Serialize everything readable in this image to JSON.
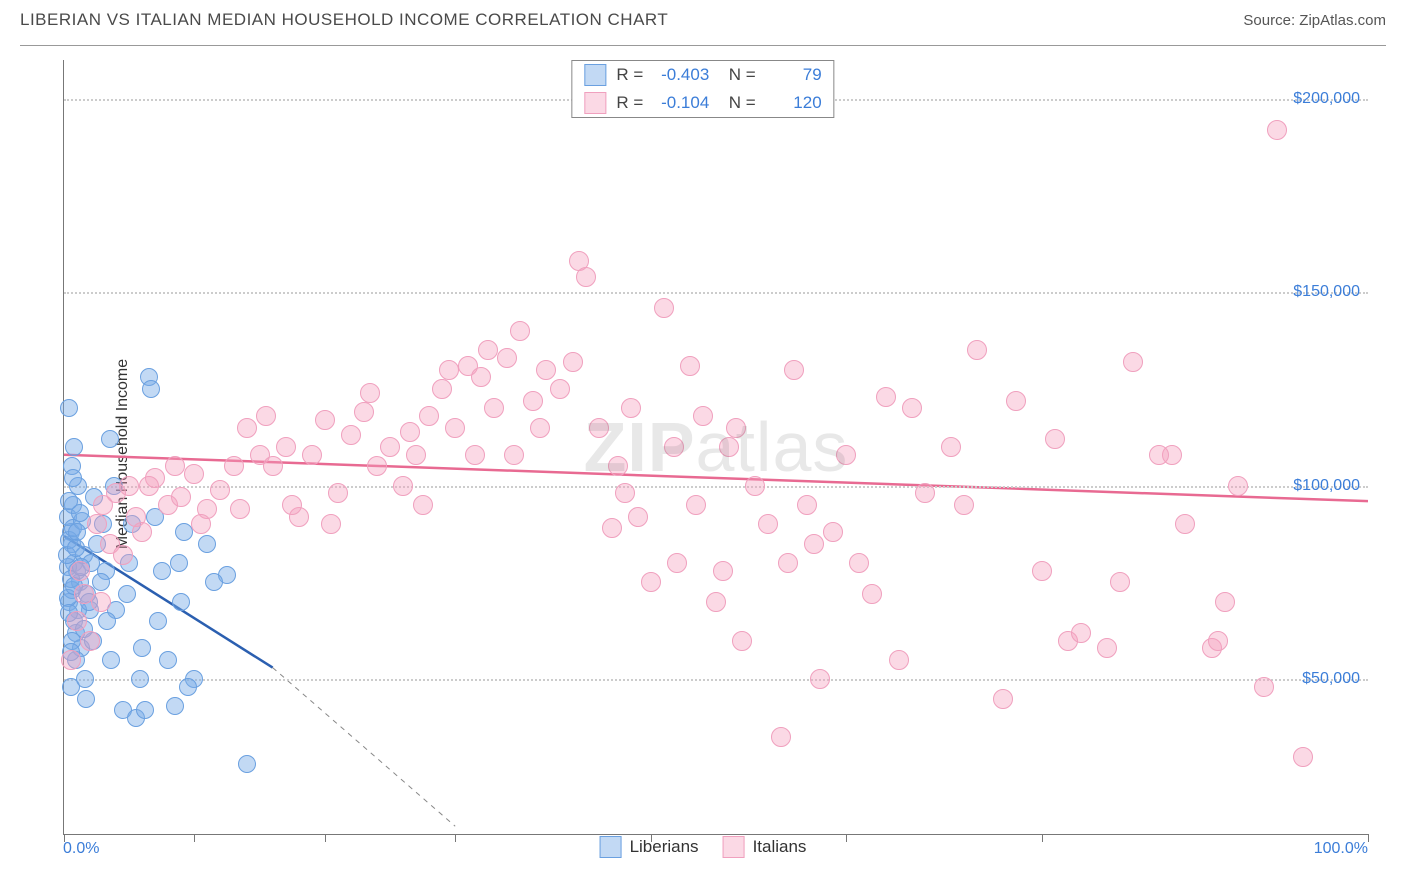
{
  "title": "LIBERIAN VS ITALIAN MEDIAN HOUSEHOLD INCOME CORRELATION CHART",
  "source_label": "Source: ",
  "source_name": "ZipAtlas.com",
  "watermark_prefix": "ZIP",
  "watermark_suffix": "atlas",
  "y_axis_label": "Median Household Income",
  "chart": {
    "type": "scatter",
    "xlim": [
      0,
      100
    ],
    "ylim": [
      10000,
      210000
    ],
    "x_ticks": [
      0,
      10,
      20,
      30,
      45,
      60,
      75,
      100
    ],
    "x_tick_labels_shown": {
      "0": "0.0%",
      "100": "100.0%"
    },
    "y_gridlines": [
      50000,
      100000,
      150000,
      200000
    ],
    "y_tick_labels": {
      "50000": "$50,000",
      "100000": "$100,000",
      "150000": "$150,000",
      "200000": "$200,000"
    },
    "grid_color": "#cccccc",
    "background_color": "#ffffff",
    "axis_color": "#777777",
    "tick_label_color": "#3b7dd8",
    "series": [
      {
        "name": "Liberians",
        "color_fill": "rgba(120,170,230,0.45)",
        "color_stroke": "#6aa0e0",
        "trend_color": "#2b5fb0",
        "marker_radius": 9,
        "R": "-0.403",
        "N": "79",
        "trend": {
          "x1": 0,
          "y1": 87000,
          "x2": 16,
          "y2": 53000,
          "dash_to_x": 30,
          "dash_to_y": 12000
        },
        "points": [
          [
            0.5,
            88000
          ],
          [
            0.6,
            85000
          ],
          [
            0.8,
            80000
          ],
          [
            1,
            78000
          ],
          [
            0.3,
            92000
          ],
          [
            0.4,
            70000
          ],
          [
            1.2,
            75000
          ],
          [
            1.5,
            82000
          ],
          [
            0.7,
            95000
          ],
          [
            1.8,
            72000
          ],
          [
            2,
            68000
          ],
          [
            0.9,
            62000
          ],
          [
            1.3,
            58000
          ],
          [
            2.5,
            85000
          ],
          [
            0.6,
            105000
          ],
          [
            1.1,
            100000
          ],
          [
            3,
            90000
          ],
          [
            3.2,
            78000
          ],
          [
            0.5,
            48000
          ],
          [
            6.5,
            128000
          ],
          [
            6.7,
            125000
          ],
          [
            4,
            68000
          ],
          [
            5,
            80000
          ],
          [
            3.5,
            112000
          ],
          [
            0.8,
            110000
          ],
          [
            2.8,
            75000
          ],
          [
            0.4,
            120000
          ],
          [
            7,
            92000
          ],
          [
            8,
            55000
          ],
          [
            9,
            70000
          ],
          [
            2.2,
            60000
          ],
          [
            1.6,
            50000
          ],
          [
            4.5,
            42000
          ],
          [
            5.5,
            40000
          ],
          [
            11,
            85000
          ],
          [
            12.5,
            77000
          ],
          [
            10,
            50000
          ],
          [
            9.5,
            48000
          ],
          [
            14,
            28000
          ],
          [
            8.5,
            43000
          ],
          [
            7.5,
            78000
          ],
          [
            6,
            58000
          ],
          [
            3.8,
            100000
          ],
          [
            0.3,
            79000
          ],
          [
            0.2,
            82000
          ],
          [
            0.4,
            86000
          ],
          [
            0.7,
            89000
          ],
          [
            1.1,
            68000
          ],
          [
            0.6,
            73000
          ],
          [
            1.4,
            91000
          ],
          [
            2.3,
            97000
          ],
          [
            0.9,
            55000
          ],
          [
            1.7,
            45000
          ],
          [
            6.2,
            42000
          ],
          [
            0.8,
            65000
          ],
          [
            1.5,
            63000
          ],
          [
            3.3,
            65000
          ],
          [
            4.8,
            72000
          ],
          [
            0.5,
            76000
          ],
          [
            0.3,
            71000
          ],
          [
            0.6,
            60000
          ],
          [
            1.0,
            88000
          ],
          [
            1.2,
            93000
          ],
          [
            2.1,
            80000
          ],
          [
            0.4,
            96000
          ],
          [
            7.2,
            65000
          ],
          [
            8.8,
            80000
          ],
          [
            5.2,
            90000
          ],
          [
            0.7,
            102000
          ],
          [
            11.5,
            75000
          ],
          [
            0.9,
            84000
          ],
          [
            0.4,
            67000
          ],
          [
            1.9,
            70000
          ],
          [
            0.5,
            57000
          ],
          [
            3.6,
            55000
          ],
          [
            5.8,
            50000
          ],
          [
            9.2,
            88000
          ],
          [
            0.8,
            74000
          ],
          [
            1.3,
            79000
          ]
        ]
      },
      {
        "name": "Italians",
        "color_fill": "rgba(245,160,190,0.40)",
        "color_stroke": "#f0a0be",
        "trend_color": "#e86a92",
        "marker_radius": 10,
        "R": "-0.104",
        "N": "120",
        "trend": {
          "x1": 0,
          "y1": 108000,
          "x2": 100,
          "y2": 96000
        },
        "points": [
          [
            1,
            65000
          ],
          [
            1.5,
            72000
          ],
          [
            2,
            60000
          ],
          [
            2.5,
            90000
          ],
          [
            3,
            95000
          ],
          [
            0.5,
            55000
          ],
          [
            4,
            98000
          ],
          [
            5,
            100000
          ],
          [
            5.5,
            92000
          ],
          [
            6,
            88000
          ],
          [
            7,
            102000
          ],
          [
            8,
            95000
          ],
          [
            8.5,
            105000
          ],
          [
            9,
            97000
          ],
          [
            10,
            103000
          ],
          [
            11,
            94000
          ],
          [
            12,
            99000
          ],
          [
            13,
            105000
          ],
          [
            14,
            115000
          ],
          [
            15,
            108000
          ],
          [
            16,
            105000
          ],
          [
            17,
            110000
          ],
          [
            18,
            92000
          ],
          [
            19,
            108000
          ],
          [
            20,
            117000
          ],
          [
            21,
            98000
          ],
          [
            22,
            113000
          ],
          [
            23,
            119000
          ],
          [
            24,
            105000
          ],
          [
            25,
            110000
          ],
          [
            26,
            100000
          ],
          [
            27,
            108000
          ],
          [
            28,
            118000
          ],
          [
            29,
            125000
          ],
          [
            30,
            115000
          ],
          [
            31,
            131000
          ],
          [
            32,
            128000
          ],
          [
            33,
            120000
          ],
          [
            34,
            133000
          ],
          [
            35,
            140000
          ],
          [
            36,
            122000
          ],
          [
            37,
            130000
          ],
          [
            38,
            125000
          ],
          [
            39,
            132000
          ],
          [
            39.5,
            158000
          ],
          [
            40,
            154000
          ],
          [
            41,
            115000
          ],
          [
            42,
            89000
          ],
          [
            43,
            98000
          ],
          [
            44,
            92000
          ],
          [
            45,
            75000
          ],
          [
            46,
            146000
          ],
          [
            47,
            80000
          ],
          [
            48,
            131000
          ],
          [
            49,
            118000
          ],
          [
            50,
            70000
          ],
          [
            51,
            110000
          ],
          [
            52,
            60000
          ],
          [
            53,
            100000
          ],
          [
            54,
            90000
          ],
          [
            55,
            35000
          ],
          [
            55.5,
            80000
          ],
          [
            56,
            130000
          ],
          [
            57,
            95000
          ],
          [
            58,
            50000
          ],
          [
            60,
            108000
          ],
          [
            62,
            72000
          ],
          [
            63,
            123000
          ],
          [
            65,
            120000
          ],
          [
            68,
            110000
          ],
          [
            70,
            135000
          ],
          [
            72,
            45000
          ],
          [
            73,
            122000
          ],
          [
            75,
            78000
          ],
          [
            77,
            60000
          ],
          [
            78,
            62000
          ],
          [
            80,
            58000
          ],
          [
            82,
            132000
          ],
          [
            85,
            108000
          ],
          [
            88,
            58000
          ],
          [
            90,
            100000
          ],
          [
            92,
            48000
          ],
          [
            93,
            192000
          ],
          [
            95,
            30000
          ],
          [
            88.5,
            60000
          ],
          [
            84,
            108000
          ],
          [
            66,
            98000
          ],
          [
            48.5,
            95000
          ],
          [
            50.5,
            78000
          ],
          [
            59,
            88000
          ],
          [
            1.2,
            78000
          ],
          [
            2.8,
            70000
          ],
          [
            3.5,
            85000
          ],
          [
            6.5,
            100000
          ],
          [
            4.5,
            82000
          ],
          [
            10.5,
            90000
          ],
          [
            13.5,
            94000
          ],
          [
            17.5,
            95000
          ],
          [
            20.5,
            90000
          ],
          [
            23.5,
            124000
          ],
          [
            26.5,
            114000
          ],
          [
            29.5,
            130000
          ],
          [
            32.5,
            135000
          ],
          [
            36.5,
            115000
          ],
          [
            31.5,
            108000
          ],
          [
            42.5,
            105000
          ],
          [
            46.8,
            110000
          ],
          [
            51.5,
            115000
          ],
          [
            57.5,
            85000
          ],
          [
            61,
            80000
          ],
          [
            64,
            55000
          ],
          [
            69,
            95000
          ],
          [
            76,
            112000
          ],
          [
            81,
            75000
          ],
          [
            86,
            90000
          ],
          [
            89,
            70000
          ],
          [
            43.5,
            120000
          ],
          [
            34.5,
            108000
          ],
          [
            27.5,
            95000
          ],
          [
            15.5,
            118000
          ]
        ]
      }
    ]
  },
  "bottom_legend": [
    {
      "label": "Liberians",
      "fill": "rgba(120,170,230,0.45)",
      "border": "#6aa0e0"
    },
    {
      "label": "Italians",
      "fill": "rgba(245,160,190,0.40)",
      "border": "#f0a0be"
    }
  ]
}
